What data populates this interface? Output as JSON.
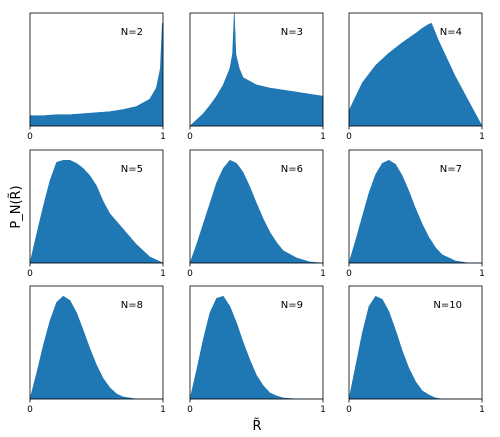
{
  "chart_data": {
    "type": "area",
    "layout": "3x3 grid of panels",
    "xlabel": "R̃",
    "ylabel": "P_N(R̃)",
    "xlim": [
      0,
      1
    ],
    "xticks": [
      "0",
      "1"
    ],
    "fill_color": "#1f77b4",
    "panels": [
      {
        "label": "N=2",
        "N": 2,
        "x": [
          0,
          0.1,
          0.2,
          0.3,
          0.4,
          0.5,
          0.6,
          0.7,
          0.8,
          0.9,
          0.95,
          0.98,
          0.995,
          1
        ],
        "y": [
          0.1,
          0.1,
          0.11,
          0.11,
          0.12,
          0.13,
          0.14,
          0.16,
          0.19,
          0.26,
          0.37,
          0.56,
          1.0,
          1.0
        ],
        "ylim": [
          0,
          1.1
        ]
      },
      {
        "label": "N=3",
        "N": 3,
        "x": [
          0,
          0.05,
          0.1,
          0.15,
          0.2,
          0.25,
          0.3,
          0.32,
          0.333,
          0.345,
          0.37,
          0.4,
          0.5,
          0.6,
          0.7,
          0.8,
          0.9,
          1
        ],
        "y": [
          0,
          0.06,
          0.12,
          0.2,
          0.29,
          0.4,
          0.56,
          0.7,
          1.2,
          0.7,
          0.56,
          0.47,
          0.4,
          0.37,
          0.35,
          0.33,
          0.31,
          0.29
        ],
        "ylim": [
          0,
          1.1
        ]
      },
      {
        "label": "N=4",
        "N": 4,
        "x": [
          0,
          0.1,
          0.2,
          0.3,
          0.4,
          0.5,
          0.55,
          0.6,
          0.62,
          0.67,
          0.8,
          0.9,
          1
        ],
        "y": [
          0.15,
          0.42,
          0.59,
          0.71,
          0.81,
          0.9,
          0.95,
          0.99,
          1.0,
          0.84,
          0.48,
          0.24,
          0.0
        ],
        "ylim": [
          0,
          1.1
        ]
      },
      {
        "label": "N=5",
        "N": 5,
        "x": [
          0,
          0.05,
          0.1,
          0.15,
          0.2,
          0.25,
          0.3,
          0.35,
          0.4,
          0.45,
          0.5,
          0.55,
          0.6,
          0.7,
          0.8,
          0.9,
          1
        ],
        "y": [
          0,
          0.28,
          0.55,
          0.8,
          0.98,
          1.0,
          1.0,
          0.97,
          0.92,
          0.85,
          0.75,
          0.6,
          0.48,
          0.33,
          0.18,
          0.06,
          0
        ],
        "ylim": [
          0,
          1.1
        ]
      },
      {
        "label": "N=6",
        "N": 6,
        "x": [
          0,
          0.05,
          0.1,
          0.15,
          0.2,
          0.25,
          0.3,
          0.35,
          0.4,
          0.45,
          0.5,
          0.55,
          0.6,
          0.65,
          0.7,
          0.8,
          0.9,
          1
        ],
        "y": [
          0,
          0.18,
          0.38,
          0.58,
          0.78,
          0.92,
          1.0,
          0.97,
          0.88,
          0.74,
          0.58,
          0.43,
          0.3,
          0.2,
          0.12,
          0.05,
          0.01,
          0
        ],
        "ylim": [
          0,
          1.1
        ]
      },
      {
        "label": "N=7",
        "N": 7,
        "x": [
          0,
          0.05,
          0.1,
          0.15,
          0.2,
          0.25,
          0.3,
          0.35,
          0.4,
          0.45,
          0.5,
          0.55,
          0.6,
          0.65,
          0.7,
          0.8,
          0.9,
          1
        ],
        "y": [
          0,
          0.22,
          0.45,
          0.68,
          0.86,
          0.97,
          1.0,
          0.96,
          0.85,
          0.7,
          0.53,
          0.38,
          0.25,
          0.15,
          0.08,
          0.02,
          0,
          0
        ],
        "ylim": [
          0,
          1.1
        ]
      },
      {
        "label": "N=8",
        "N": 8,
        "x": [
          0,
          0.05,
          0.1,
          0.15,
          0.2,
          0.25,
          0.3,
          0.35,
          0.4,
          0.45,
          0.5,
          0.55,
          0.6,
          0.65,
          0.7,
          0.8,
          0.9,
          1
        ],
        "y": [
          0,
          0.25,
          0.52,
          0.76,
          0.94,
          1.0,
          0.96,
          0.84,
          0.67,
          0.49,
          0.33,
          0.2,
          0.11,
          0.05,
          0.02,
          0,
          0,
          0
        ],
        "ylim": [
          0,
          1.1
        ]
      },
      {
        "label": "N=9",
        "N": 9,
        "x": [
          0,
          0.05,
          0.1,
          0.15,
          0.2,
          0.25,
          0.3,
          0.35,
          0.4,
          0.45,
          0.5,
          0.55,
          0.6,
          0.65,
          0.7,
          0.8,
          0.9,
          1
        ],
        "y": [
          0,
          0.28,
          0.58,
          0.84,
          0.98,
          1.0,
          0.9,
          0.74,
          0.55,
          0.38,
          0.23,
          0.13,
          0.06,
          0.03,
          0.01,
          0,
          0,
          0
        ],
        "ylim": [
          0,
          1.1
        ]
      },
      {
        "label": "N=10",
        "N": 10,
        "x": [
          0,
          0.05,
          0.1,
          0.15,
          0.2,
          0.25,
          0.3,
          0.35,
          0.4,
          0.45,
          0.5,
          0.55,
          0.6,
          0.65,
          0.7,
          0.8,
          0.9,
          1
        ],
        "y": [
          0,
          0.32,
          0.64,
          0.9,
          1.0,
          0.97,
          0.85,
          0.67,
          0.47,
          0.3,
          0.17,
          0.08,
          0.04,
          0.01,
          0,
          0,
          0,
          0
        ],
        "ylim": [
          0,
          1.1
        ]
      }
    ]
  }
}
